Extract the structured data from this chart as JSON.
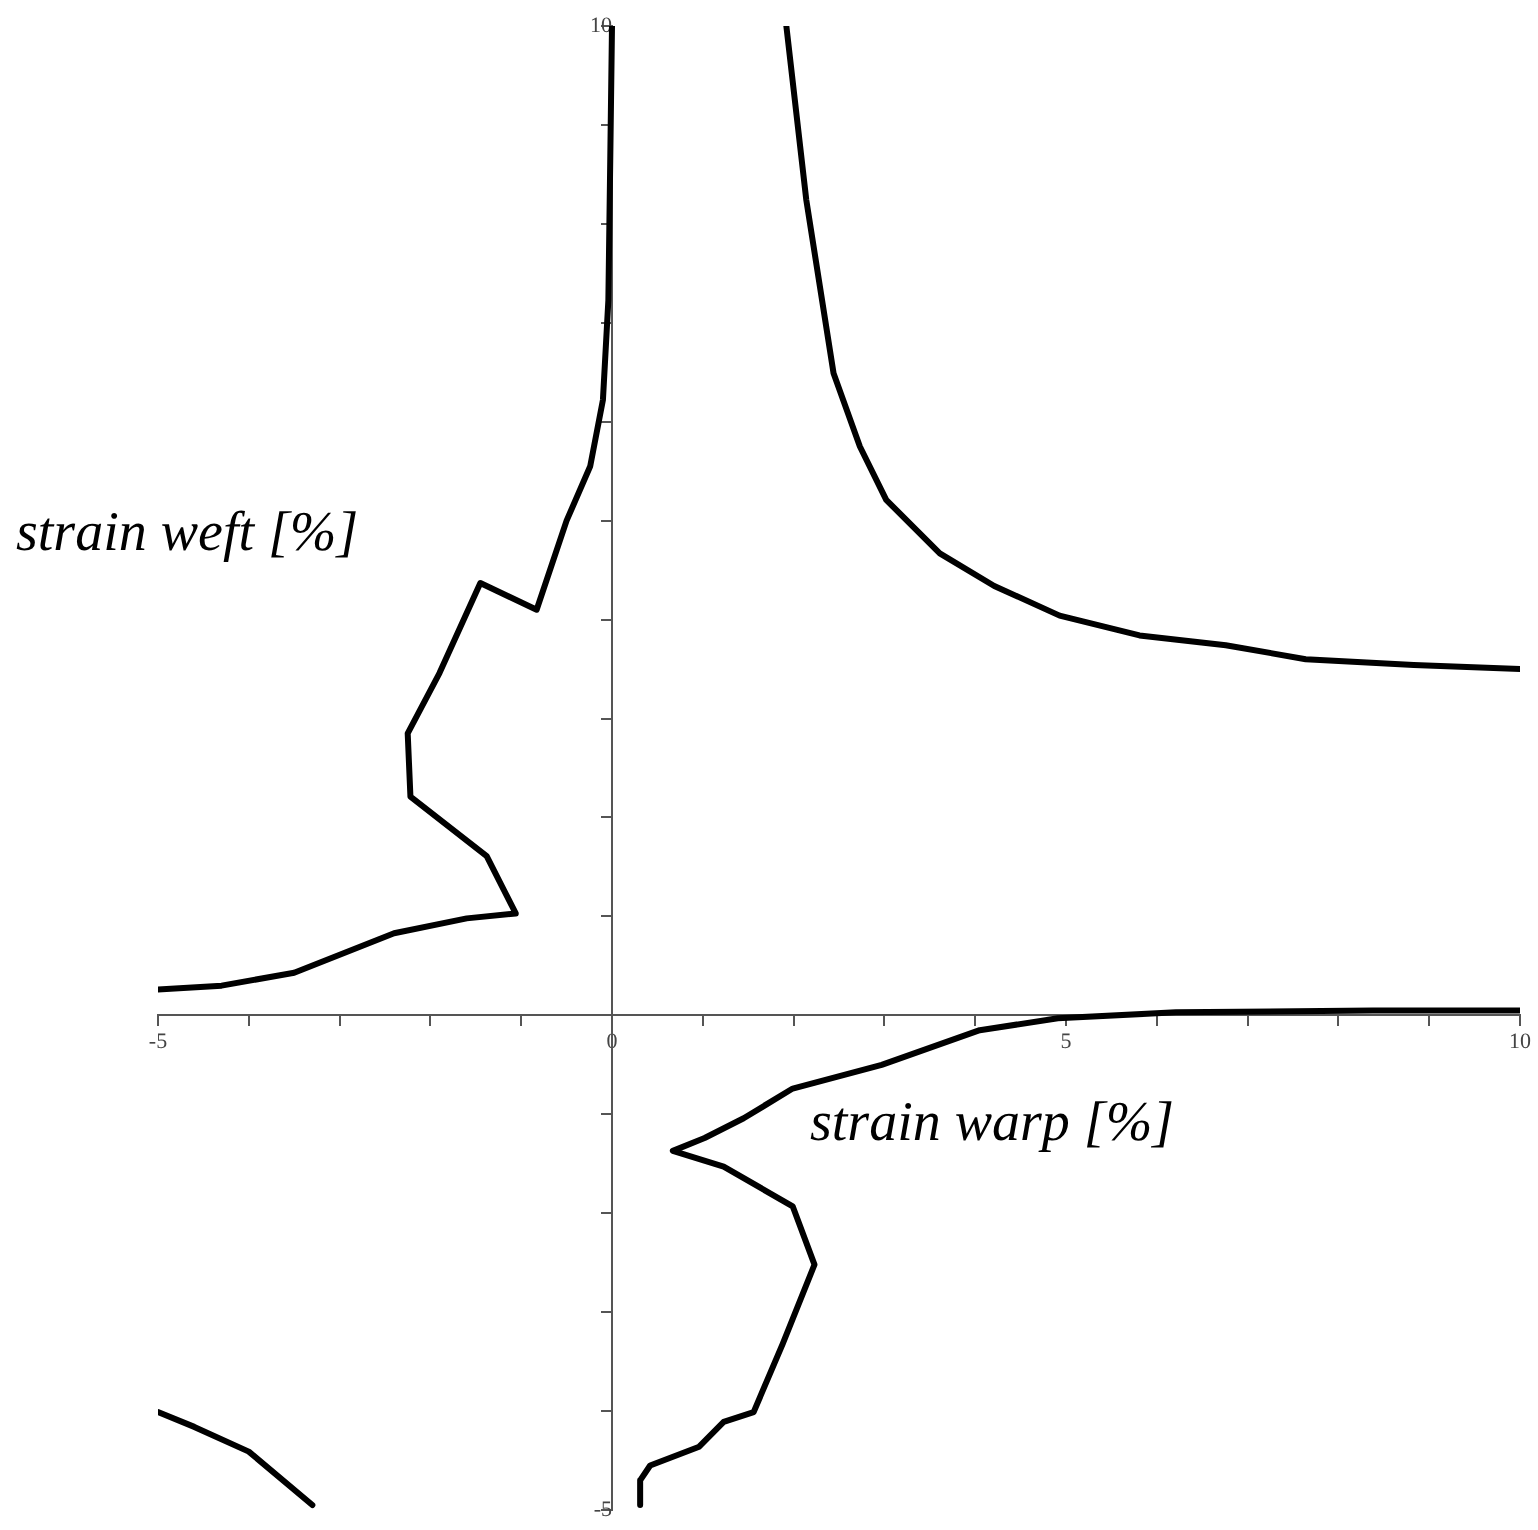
{
  "chart_data": {
    "type": "line",
    "xlabel": "strain warp [%]",
    "ylabel": "strain weft [%]",
    "xlim": [
      -5,
      10
    ],
    "ylim": [
      -5,
      10
    ],
    "xticks": [
      -5,
      {
        "value": -4,
        "label": null
      },
      {
        "value": -3,
        "label": null
      },
      {
        "value": -2,
        "label": null
      },
      {
        "value": -1,
        "label": null
      },
      0,
      {
        "value": 1,
        "label": null
      },
      {
        "value": 2,
        "label": null
      },
      {
        "value": 3,
        "label": null
      },
      {
        "value": 4,
        "label": null
      },
      5,
      {
        "value": 6,
        "label": null
      },
      {
        "value": 7,
        "label": null
      },
      {
        "value": 8,
        "label": null
      },
      {
        "value": 9,
        "label": null
      },
      10
    ],
    "yticks": [
      -5,
      {
        "value": -4,
        "label": null
      },
      {
        "value": -3,
        "label": null
      },
      {
        "value": -2,
        "label": null
      },
      {
        "value": -1,
        "label": null
      },
      {
        "value": 1,
        "label": null
      },
      {
        "value": 2,
        "label": null
      },
      {
        "value": 3,
        "label": null
      },
      {
        "value": 4,
        "label": null
      },
      {
        "value": 5,
        "label": null
      },
      {
        "value": 6,
        "label": null
      },
      {
        "value": 7,
        "label": null
      },
      {
        "value": 8,
        "label": null
      },
      {
        "value": 9,
        "label": null
      },
      10
    ],
    "grid": false,
    "legend": false,
    "marker": "none",
    "line_style": "solid",
    "series": [
      {
        "color": "#000000",
        "x": [
          -5.0,
          -4.3,
          -3.5,
          -2.4,
          -1.6,
          -1.06,
          -1.38,
          -2.22,
          -2.25,
          -1.9,
          -1.45,
          -0.83,
          -0.5,
          -0.24,
          -0.1,
          -0.04,
          -0.02,
          0
        ],
        "values": [
          0.26,
          0.3,
          0.43,
          0.83,
          0.98,
          1.03,
          1.61,
          2.21,
          2.85,
          3.46,
          4.37,
          4.1,
          5.0,
          5.55,
          6.22,
          7.23,
          8.6,
          10
        ]
      },
      {
        "color": "#000000",
        "x": [
          1.92,
          2.14,
          2.44,
          2.73,
          3.02,
          3.61,
          4.21,
          4.93,
          5.81,
          6.76,
          7.64,
          8.83,
          10
        ],
        "values": [
          10,
          8.24,
          6.49,
          5.75,
          5.21,
          4.67,
          4.34,
          4.04,
          3.84,
          3.74,
          3.6,
          3.54,
          3.5
        ]
      },
      {
        "color": "#000000",
        "x": [
          10,
          8.38,
          6.21,
          4.91,
          4.05,
          2.97,
          1.99,
          1.45,
          1.02,
          0.67,
          1.23,
          1.99,
          2.23,
          1.88,
          1.56,
          1.23,
          0.96,
          0.42,
          0.31,
          0.31
        ],
        "values": [
          0.05,
          0.05,
          0.03,
          -0.03,
          -0.15,
          -0.5,
          -0.74,
          -1.04,
          -1.24,
          -1.37,
          -1.53,
          -1.93,
          -2.52,
          -3.32,
          -4.01,
          -4.11,
          -4.36,
          -4.55,
          -4.7,
          -4.95
        ]
      },
      {
        "color": "#000000",
        "x": [
          -5.0,
          -4.6,
          -4.0,
          -3.3
        ],
        "values": [
          -4.01,
          -4.16,
          -4.41,
          -4.95
        ]
      }
    ]
  }
}
